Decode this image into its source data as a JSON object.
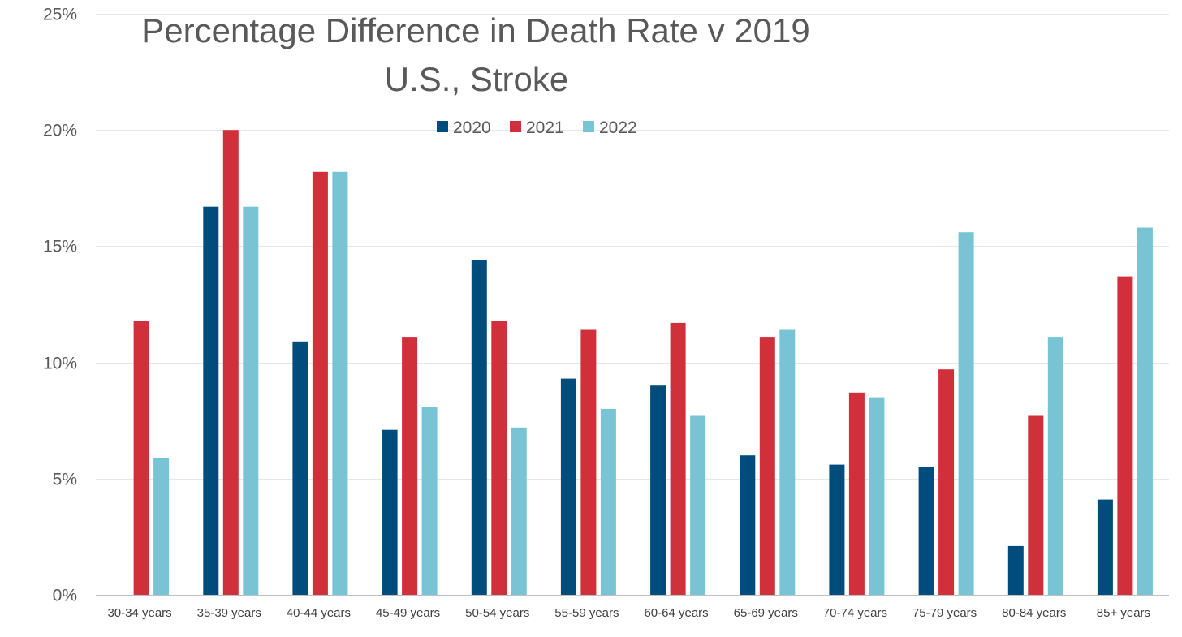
{
  "chart_data": {
    "type": "bar",
    "title": "Percentage Difference in Death Rate v 2019",
    "subtitle": "U.S., Stroke",
    "xlabel": "",
    "ylabel": "",
    "ylim": [
      0,
      25
    ],
    "yticks": [
      "0%",
      "5%",
      "10%",
      "15%",
      "20%",
      "25%"
    ],
    "grid": true,
    "legend_position": "top",
    "categories": [
      "30-34 years",
      "35-39 years",
      "40-44 years",
      "45-49 years",
      "50-54 years",
      "55-59 years",
      "60-64 years",
      "65-69 years",
      "70-74 years",
      "75-79 years",
      "80-84 years",
      "85+ years"
    ],
    "series": [
      {
        "name": "2020",
        "color": "#004C7C",
        "values": [
          0,
          16.7,
          10.9,
          7.1,
          14.4,
          9.3,
          9.0,
          6.0,
          5.6,
          5.5,
          2.1,
          4.1
        ]
      },
      {
        "name": "2021",
        "color": "#D0303A",
        "values": [
          11.8,
          20.0,
          18.2,
          11.1,
          11.8,
          11.4,
          11.7,
          11.1,
          8.7,
          9.7,
          7.7,
          13.7
        ]
      },
      {
        "name": "2022",
        "color": "#78C4D4",
        "values": [
          5.9,
          16.7,
          18.2,
          8.1,
          7.2,
          8.0,
          7.7,
          11.4,
          8.5,
          15.6,
          11.1,
          15.8
        ]
      }
    ]
  }
}
